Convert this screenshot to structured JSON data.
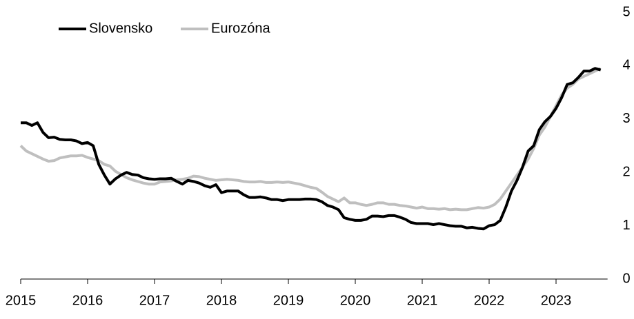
{
  "chart_data": {
    "type": "line",
    "categories": [
      "2015",
      null,
      null,
      null,
      null,
      null,
      null,
      null,
      null,
      null,
      null,
      null,
      "2016",
      null,
      null,
      null,
      null,
      null,
      null,
      null,
      null,
      null,
      null,
      null,
      "2017",
      null,
      null,
      null,
      null,
      null,
      null,
      null,
      null,
      null,
      null,
      null,
      "2018",
      null,
      null,
      null,
      null,
      null,
      null,
      null,
      null,
      null,
      null,
      null,
      "2019",
      null,
      null,
      null,
      null,
      null,
      null,
      null,
      null,
      null,
      null,
      null,
      "2020",
      null,
      null,
      null,
      null,
      null,
      null,
      null,
      null,
      null,
      null,
      null,
      "2021",
      null,
      null,
      null,
      null,
      null,
      null,
      null,
      null,
      null,
      null,
      null,
      "2022",
      null,
      null,
      null,
      null,
      null,
      null,
      null,
      null,
      null,
      null,
      null,
      "2023",
      null,
      null,
      null,
      null,
      null,
      null,
      null,
      null
    ],
    "series": [
      {
        "name": "Slovensko",
        "color": "#000000",
        "values": [
          2.93,
          2.93,
          2.88,
          2.93,
          2.75,
          2.65,
          2.66,
          2.62,
          2.61,
          2.61,
          2.59,
          2.54,
          2.56,
          2.5,
          2.15,
          1.95,
          1.78,
          1.88,
          1.95,
          2.0,
          1.96,
          1.95,
          1.9,
          1.88,
          1.87,
          1.88,
          1.88,
          1.89,
          1.83,
          1.78,
          1.85,
          1.83,
          1.8,
          1.75,
          1.72,
          1.77,
          1.62,
          1.65,
          1.65,
          1.65,
          1.58,
          1.53,
          1.53,
          1.54,
          1.52,
          1.49,
          1.49,
          1.47,
          1.49,
          1.49,
          1.49,
          1.5,
          1.5,
          1.49,
          1.45,
          1.38,
          1.35,
          1.3,
          1.15,
          1.12,
          1.1,
          1.1,
          1.12,
          1.18,
          1.18,
          1.17,
          1.19,
          1.19,
          1.16,
          1.12,
          1.06,
          1.04,
          1.04,
          1.04,
          1.02,
          1.04,
          1.02,
          1.0,
          0.99,
          0.99,
          0.96,
          0.97,
          0.95,
          0.94,
          1.0,
          1.02,
          1.1,
          1.35,
          1.65,
          1.85,
          2.1,
          2.4,
          2.5,
          2.8,
          2.95,
          3.05,
          3.2,
          3.4,
          3.65,
          3.68,
          3.78,
          3.9,
          3.9,
          3.95,
          3.92
        ]
      },
      {
        "name": "Eurozóna",
        "color": "#bfbfbf",
        "values": [
          2.5,
          2.4,
          2.35,
          2.3,
          2.25,
          2.21,
          2.22,
          2.27,
          2.29,
          2.31,
          2.31,
          2.32,
          2.28,
          2.25,
          2.22,
          2.15,
          2.12,
          2.02,
          1.96,
          1.9,
          1.86,
          1.83,
          1.8,
          1.78,
          1.78,
          1.82,
          1.83,
          1.84,
          1.86,
          1.87,
          1.89,
          1.93,
          1.92,
          1.89,
          1.87,
          1.85,
          1.86,
          1.87,
          1.86,
          1.85,
          1.83,
          1.82,
          1.82,
          1.83,
          1.81,
          1.81,
          1.82,
          1.81,
          1.82,
          1.8,
          1.78,
          1.75,
          1.72,
          1.7,
          1.63,
          1.55,
          1.5,
          1.45,
          1.52,
          1.43,
          1.43,
          1.4,
          1.38,
          1.4,
          1.43,
          1.43,
          1.4,
          1.4,
          1.38,
          1.37,
          1.35,
          1.33,
          1.35,
          1.32,
          1.32,
          1.31,
          1.32,
          1.3,
          1.31,
          1.3,
          1.3,
          1.32,
          1.34,
          1.33,
          1.35,
          1.4,
          1.5,
          1.65,
          1.8,
          1.95,
          2.1,
          2.25,
          2.45,
          2.7,
          2.85,
          3.05,
          3.25,
          3.45,
          3.58,
          3.65,
          3.75,
          3.8,
          3.85,
          3.9,
          3.95
        ]
      }
    ],
    "ylim": [
      0,
      5
    ],
    "yticks": [
      0,
      1,
      2,
      3,
      4,
      5
    ],
    "y_axis_side": "right",
    "grid": false,
    "legend": "top-left"
  }
}
